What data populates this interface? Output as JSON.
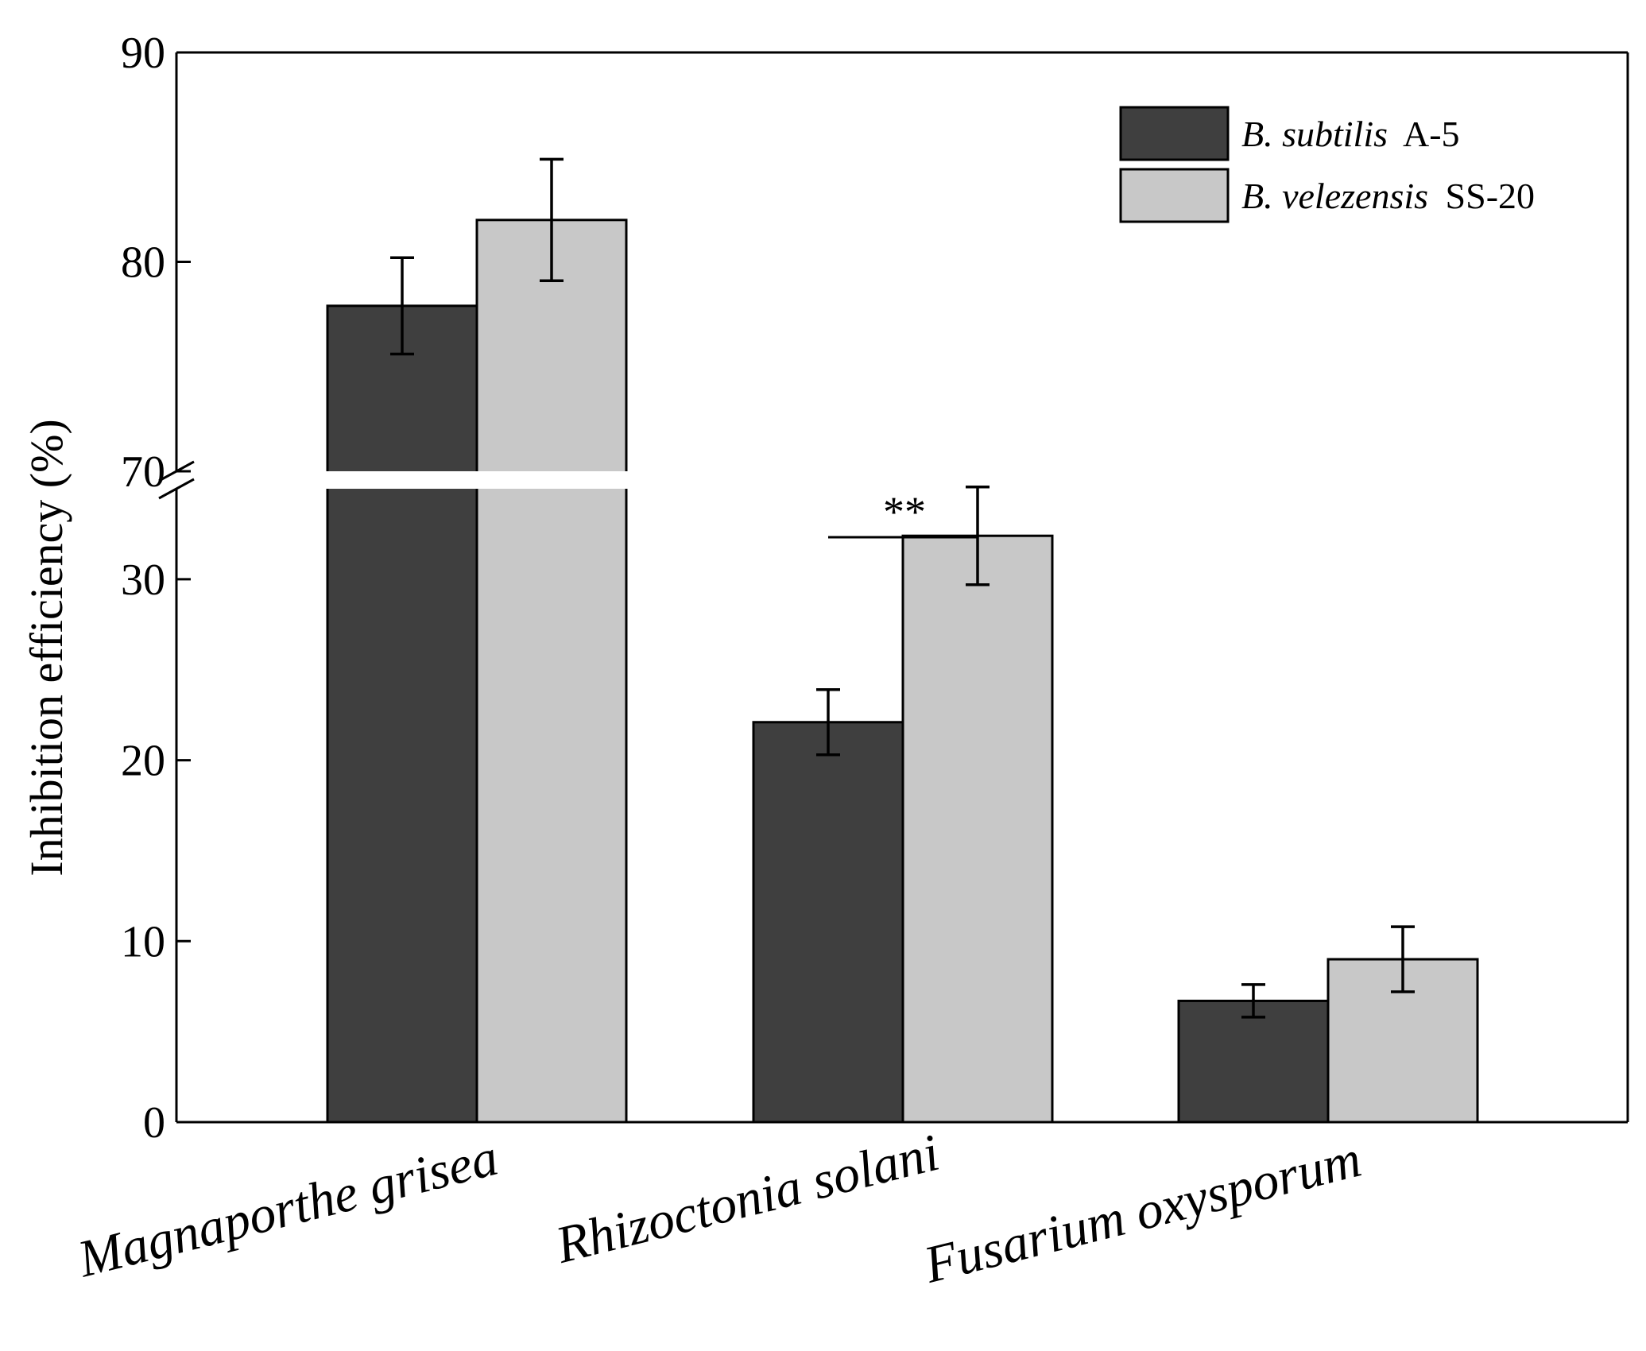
{
  "chart_data": {
    "type": "bar",
    "title": "",
    "xlabel": "",
    "ylabel": "Inhibition efficiency (%)",
    "y_axis_break": {
      "from": 35,
      "to": 70
    },
    "ylim_lower": [
      0,
      35
    ],
    "ylim_upper": [
      70,
      90
    ],
    "yticks_lower": [
      0,
      10,
      20,
      30
    ],
    "yticks_upper": [
      70,
      80,
      90
    ],
    "categories": [
      "Magnaporthe grisea",
      "Rhizoctonia solani",
      "Fusarium oxysporum"
    ],
    "series": [
      {
        "name_italic": "B. subtilis",
        "name_rest": "A-5",
        "color": "#3f3f3f",
        "values": [
          77.9,
          22.1,
          6.7
        ],
        "errors": [
          2.3,
          1.8,
          0.9
        ]
      },
      {
        "name_italic": "B. velezensis",
        "name_rest": "SS-20",
        "color": "#c8c8c8",
        "values": [
          82.0,
          32.4,
          9.0
        ],
        "errors": [
          2.9,
          2.7,
          1.8
        ]
      }
    ],
    "significance": [
      {
        "category": "Rhizoctonia solani",
        "label": "**"
      }
    ],
    "legend_position": "top-right",
    "grid": false
  }
}
